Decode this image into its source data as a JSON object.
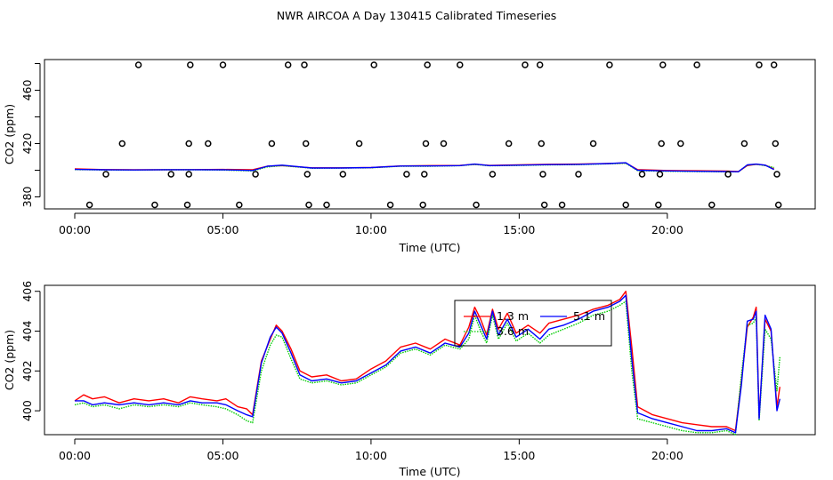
{
  "page": {
    "title": "NWR AIRCOA A  Day 130415  Calibrated Timeseries"
  },
  "colors": {
    "red": "#ff0000",
    "green": "#00cc00",
    "blue": "#0000ff",
    "axis": "#000000"
  },
  "chart_data": [
    {
      "id": "top",
      "type": "line",
      "title": "NWR AIRCOA A  Day 130415  Calibrated Timeseries",
      "xlabel": "Time (UTC)",
      "ylabel": "CO2 (ppm)",
      "xlim": [
        0,
        24
      ],
      "ylim": [
        371,
        483
      ],
      "xticks": [
        0,
        5,
        10,
        15,
        20
      ],
      "xtick_labels": [
        "00:00",
        "05:00",
        "10:00",
        "15:00",
        "20:00"
      ],
      "yticks": [
        380,
        400,
        420,
        440,
        460,
        480
      ],
      "ytick_labels": [
        "380",
        "",
        "420",
        "",
        "460",
        ""
      ],
      "series": [
        {
          "name": "1.3 m",
          "color": "#ff0000",
          "style": "solid",
          "x": [
            0,
            1,
            2,
            3,
            4,
            5,
            6,
            6.5,
            7,
            8,
            9,
            10,
            11,
            12,
            13,
            13.5,
            14,
            15,
            16,
            17,
            18,
            18.6,
            19,
            20,
            21,
            22,
            22.4,
            22.7,
            23,
            23.3,
            23.6
          ],
          "y": [
            401,
            400.5,
            400.3,
            400.4,
            400.5,
            400.6,
            400.4,
            403,
            403.5,
            401.8,
            401.8,
            402,
            403.2,
            403.5,
            403.6,
            404.5,
            403.6,
            404,
            404.5,
            404.6,
            405,
            405.5,
            400.5,
            399.8,
            399.6,
            399.3,
            399,
            403.5,
            404.5,
            403.8,
            401
          ]
        },
        {
          "name": "3.6 m",
          "color": "#00cc00",
          "style": "dotted",
          "x": [
            0,
            1,
            2,
            3,
            4,
            5,
            6,
            6.5,
            7,
            8,
            9,
            10,
            11,
            12,
            13,
            13.5,
            14,
            15,
            16,
            17,
            18,
            18.6,
            19,
            20,
            21,
            22,
            22.4,
            22.7,
            23,
            23.3,
            23.6
          ],
          "y": [
            400.5,
            400.2,
            400.1,
            400.3,
            400.3,
            400.1,
            399.5,
            402.5,
            403.5,
            401.5,
            401.6,
            401.8,
            403,
            403,
            403.4,
            404.3,
            403.3,
            403.6,
            404,
            404.2,
            404.8,
            405.2,
            399.7,
            399.2,
            399,
            398.9,
            398.9,
            403.8,
            404.5,
            403.5,
            402
          ]
        },
        {
          "name": "5.1 m",
          "color": "#0000ff",
          "style": "solid",
          "x": [
            0,
            1,
            2,
            3,
            4,
            5,
            6,
            6.5,
            7,
            8,
            9,
            10,
            11,
            12,
            13,
            13.5,
            14,
            15,
            16,
            17,
            18,
            18.6,
            19,
            20,
            21,
            22,
            22.4,
            22.7,
            23,
            23.3,
            23.6
          ],
          "y": [
            400.6,
            400.3,
            400.2,
            400.4,
            400.4,
            400.3,
            399.8,
            403,
            403.8,
            401.7,
            401.7,
            402,
            403.1,
            403.2,
            403.5,
            404.6,
            403.5,
            403.8,
            404.2,
            404.4,
            405,
            405.6,
            400,
            399.5,
            399.2,
            399,
            398.9,
            404,
            404.6,
            403.8,
            400.5
          ]
        }
      ],
      "outliers": [
        {
          "x": 0.5,
          "y": 374
        },
        {
          "x": 1.05,
          "y": 397
        },
        {
          "x": 1.6,
          "y": 420
        },
        {
          "x": 2.15,
          "y": 479
        },
        {
          "x": 2.7,
          "y": 374
        },
        {
          "x": 3.25,
          "y": 397
        },
        {
          "x": 3.8,
          "y": 374
        },
        {
          "x": 3.85,
          "y": 397
        },
        {
          "x": 3.85,
          "y": 420
        },
        {
          "x": 3.9,
          "y": 479
        },
        {
          "x": 4.5,
          "y": 420
        },
        {
          "x": 5.0,
          "y": 479
        },
        {
          "x": 5.55,
          "y": 374
        },
        {
          "x": 6.1,
          "y": 397
        },
        {
          "x": 6.65,
          "y": 420
        },
        {
          "x": 7.2,
          "y": 479
        },
        {
          "x": 7.75,
          "y": 479
        },
        {
          "x": 7.8,
          "y": 420
        },
        {
          "x": 7.85,
          "y": 397
        },
        {
          "x": 7.9,
          "y": 374
        },
        {
          "x": 8.5,
          "y": 374
        },
        {
          "x": 9.05,
          "y": 397
        },
        {
          "x": 9.6,
          "y": 420
        },
        {
          "x": 10.1,
          "y": 479
        },
        {
          "x": 10.65,
          "y": 374
        },
        {
          "x": 11.2,
          "y": 397
        },
        {
          "x": 11.75,
          "y": 374
        },
        {
          "x": 11.8,
          "y": 397
        },
        {
          "x": 11.85,
          "y": 420
        },
        {
          "x": 11.9,
          "y": 479
        },
        {
          "x": 12.45,
          "y": 420
        },
        {
          "x": 13.0,
          "y": 479
        },
        {
          "x": 13.55,
          "y": 374
        },
        {
          "x": 14.1,
          "y": 397
        },
        {
          "x": 14.65,
          "y": 420
        },
        {
          "x": 15.2,
          "y": 479
        },
        {
          "x": 15.7,
          "y": 479
        },
        {
          "x": 15.75,
          "y": 420
        },
        {
          "x": 15.8,
          "y": 397
        },
        {
          "x": 15.85,
          "y": 374
        },
        {
          "x": 16.45,
          "y": 374
        },
        {
          "x": 17.0,
          "y": 397
        },
        {
          "x": 17.5,
          "y": 420
        },
        {
          "x": 18.05,
          "y": 479
        },
        {
          "x": 18.6,
          "y": 374
        },
        {
          "x": 19.15,
          "y": 397
        },
        {
          "x": 19.7,
          "y": 374
        },
        {
          "x": 19.75,
          "y": 397
        },
        {
          "x": 19.8,
          "y": 420
        },
        {
          "x": 19.85,
          "y": 479
        },
        {
          "x": 20.45,
          "y": 420
        },
        {
          "x": 21.0,
          "y": 479
        },
        {
          "x": 21.5,
          "y": 374
        },
        {
          "x": 22.05,
          "y": 397
        },
        {
          "x": 22.6,
          "y": 420
        },
        {
          "x": 23.1,
          "y": 479
        },
        {
          "x": 23.6,
          "y": 479
        },
        {
          "x": 23.65,
          "y": 420
        },
        {
          "x": 23.7,
          "y": 397
        },
        {
          "x": 23.75,
          "y": 374
        }
      ]
    },
    {
      "id": "bottom",
      "type": "line",
      "title": "",
      "xlabel": "Time (UTC)",
      "ylabel": "CO2 (ppm)",
      "xlim": [
        0,
        24
      ],
      "ylim": [
        398.8,
        406.3
      ],
      "xticks": [
        0,
        5,
        10,
        15,
        20
      ],
      "xtick_labels": [
        "00:00",
        "05:00",
        "10:00",
        "15:00",
        "20:00"
      ],
      "yticks": [
        400,
        402,
        404,
        406
      ],
      "ytick_labels": [
        "400",
        "402",
        "404",
        "406"
      ],
      "legend": {
        "placement": "top-center",
        "entries": [
          {
            "label": "1.3 m",
            "color": "#ff0000",
            "style": "solid"
          },
          {
            "label": "3.6 m",
            "color": "#00cc00",
            "style": "dotted"
          },
          {
            "label": "5.1 m",
            "color": "#0000ff",
            "style": "solid"
          }
        ]
      },
      "series": [
        {
          "name": "1.3 m",
          "color": "#ff0000",
          "style": "solid",
          "x": [
            0,
            0.3,
            0.6,
            1.0,
            1.5,
            2.0,
            2.5,
            3.0,
            3.5,
            3.9,
            4.3,
            4.8,
            5.1,
            5.5,
            5.8,
            6.0,
            6.3,
            6.6,
            6.8,
            7.0,
            7.3,
            7.6,
            8.0,
            8.5,
            9.0,
            9.5,
            10.0,
            10.5,
            11.0,
            11.5,
            12.0,
            12.5,
            13.0,
            13.3,
            13.5,
            13.7,
            13.9,
            14.1,
            14.3,
            14.6,
            14.9,
            15.3,
            15.7,
            16.0,
            16.5,
            17.0,
            17.5,
            18.0,
            18.4,
            18.6,
            18.8,
            19.0,
            19.5,
            20.0,
            20.5,
            21.0,
            21.5,
            22.0,
            22.3,
            22.5,
            22.7,
            22.9,
            23.0,
            23.1,
            23.3,
            23.5,
            23.7,
            23.8
          ],
          "y": [
            400.5,
            400.8,
            400.6,
            400.7,
            400.4,
            400.6,
            400.5,
            400.6,
            400.4,
            400.7,
            400.6,
            400.5,
            400.6,
            400.2,
            400.1,
            399.8,
            402.5,
            403.6,
            404.3,
            404.0,
            403.1,
            402.0,
            401.7,
            401.8,
            401.5,
            401.6,
            402.1,
            402.5,
            403.2,
            403.4,
            403.1,
            403.6,
            403.3,
            404.2,
            405.2,
            404.6,
            403.8,
            405.1,
            404.1,
            404.9,
            403.9,
            404.3,
            403.9,
            404.4,
            404.6,
            404.8,
            405.1,
            405.3,
            405.6,
            406.0,
            403.2,
            400.2,
            399.8,
            399.6,
            399.4,
            399.3,
            399.2,
            399.2,
            399.0,
            401.5,
            404.2,
            404.7,
            405.2,
            399.7,
            404.6,
            404.0,
            400.2,
            401.2
          ]
        },
        {
          "name": "3.6 m",
          "color": "#00cc00",
          "style": "dotted",
          "x": [
            0,
            0.3,
            0.6,
            1.0,
            1.5,
            2.0,
            2.5,
            3.0,
            3.5,
            3.9,
            4.3,
            4.8,
            5.1,
            5.5,
            5.8,
            6.0,
            6.3,
            6.6,
            6.8,
            7.0,
            7.3,
            7.6,
            8.0,
            8.5,
            9.0,
            9.5,
            10.0,
            10.5,
            11.0,
            11.5,
            12.0,
            12.5,
            13.0,
            13.3,
            13.5,
            13.7,
            13.9,
            14.1,
            14.3,
            14.6,
            14.9,
            15.3,
            15.7,
            16.0,
            16.5,
            17.0,
            17.5,
            18.0,
            18.4,
            18.6,
            18.8,
            19.0,
            19.5,
            20.0,
            20.5,
            21.0,
            21.5,
            22.0,
            22.3,
            22.5,
            22.7,
            22.9,
            23.0,
            23.1,
            23.3,
            23.5,
            23.7,
            23.8
          ],
          "y": [
            400.3,
            400.4,
            400.2,
            400.3,
            400.1,
            400.3,
            400.2,
            400.3,
            400.2,
            400.4,
            400.3,
            400.2,
            400.1,
            399.8,
            399.5,
            399.4,
            402.0,
            403.3,
            403.8,
            403.7,
            402.6,
            401.6,
            401.4,
            401.5,
            401.3,
            401.4,
            401.8,
            402.2,
            402.9,
            403.1,
            402.8,
            403.3,
            403.1,
            403.6,
            404.8,
            404.0,
            403.4,
            404.8,
            403.6,
            404.4,
            403.5,
            403.9,
            403.4,
            403.8,
            404.1,
            404.4,
            404.8,
            405.0,
            405.3,
            405.5,
            402.0,
            399.6,
            399.4,
            399.2,
            399.0,
            398.9,
            398.9,
            399.0,
            398.8,
            401.8,
            404.3,
            404.4,
            404.7,
            399.5,
            404.1,
            403.6,
            401.0,
            402.7
          ]
        },
        {
          "name": "5.1 m",
          "color": "#0000ff",
          "style": "solid",
          "x": [
            0,
            0.3,
            0.6,
            1.0,
            1.5,
            2.0,
            2.5,
            3.0,
            3.5,
            3.9,
            4.3,
            4.8,
            5.1,
            5.5,
            5.8,
            6.0,
            6.3,
            6.6,
            6.8,
            7.0,
            7.3,
            7.6,
            8.0,
            8.5,
            9.0,
            9.5,
            10.0,
            10.5,
            11.0,
            11.5,
            12.0,
            12.5,
            13.0,
            13.3,
            13.5,
            13.7,
            13.9,
            14.1,
            14.3,
            14.6,
            14.9,
            15.3,
            15.7,
            16.0,
            16.5,
            17.0,
            17.5,
            18.0,
            18.4,
            18.6,
            18.8,
            19.0,
            19.5,
            20.0,
            20.5,
            21.0,
            21.5,
            22.0,
            22.3,
            22.5,
            22.7,
            22.9,
            23.0,
            23.1,
            23.3,
            23.5,
            23.7,
            23.8
          ],
          "y": [
            400.5,
            400.5,
            400.3,
            400.4,
            400.3,
            400.4,
            400.3,
            400.4,
            400.3,
            400.5,
            400.4,
            400.4,
            400.3,
            400.0,
            399.8,
            399.7,
            402.4,
            403.7,
            404.2,
            403.9,
            402.9,
            401.8,
            401.5,
            401.6,
            401.4,
            401.5,
            401.9,
            402.3,
            403.0,
            403.2,
            402.9,
            403.4,
            403.2,
            403.9,
            405.0,
            404.3,
            403.6,
            405.0,
            403.8,
            404.6,
            403.7,
            404.1,
            403.6,
            404.1,
            404.3,
            404.6,
            405.0,
            405.2,
            405.5,
            405.8,
            402.6,
            399.9,
            399.6,
            399.4,
            399.2,
            399.0,
            399.0,
            399.1,
            398.9,
            401.3,
            404.5,
            404.6,
            405.0,
            399.6,
            404.8,
            404.1,
            400.0,
            400.6
          ]
        }
      ]
    }
  ]
}
